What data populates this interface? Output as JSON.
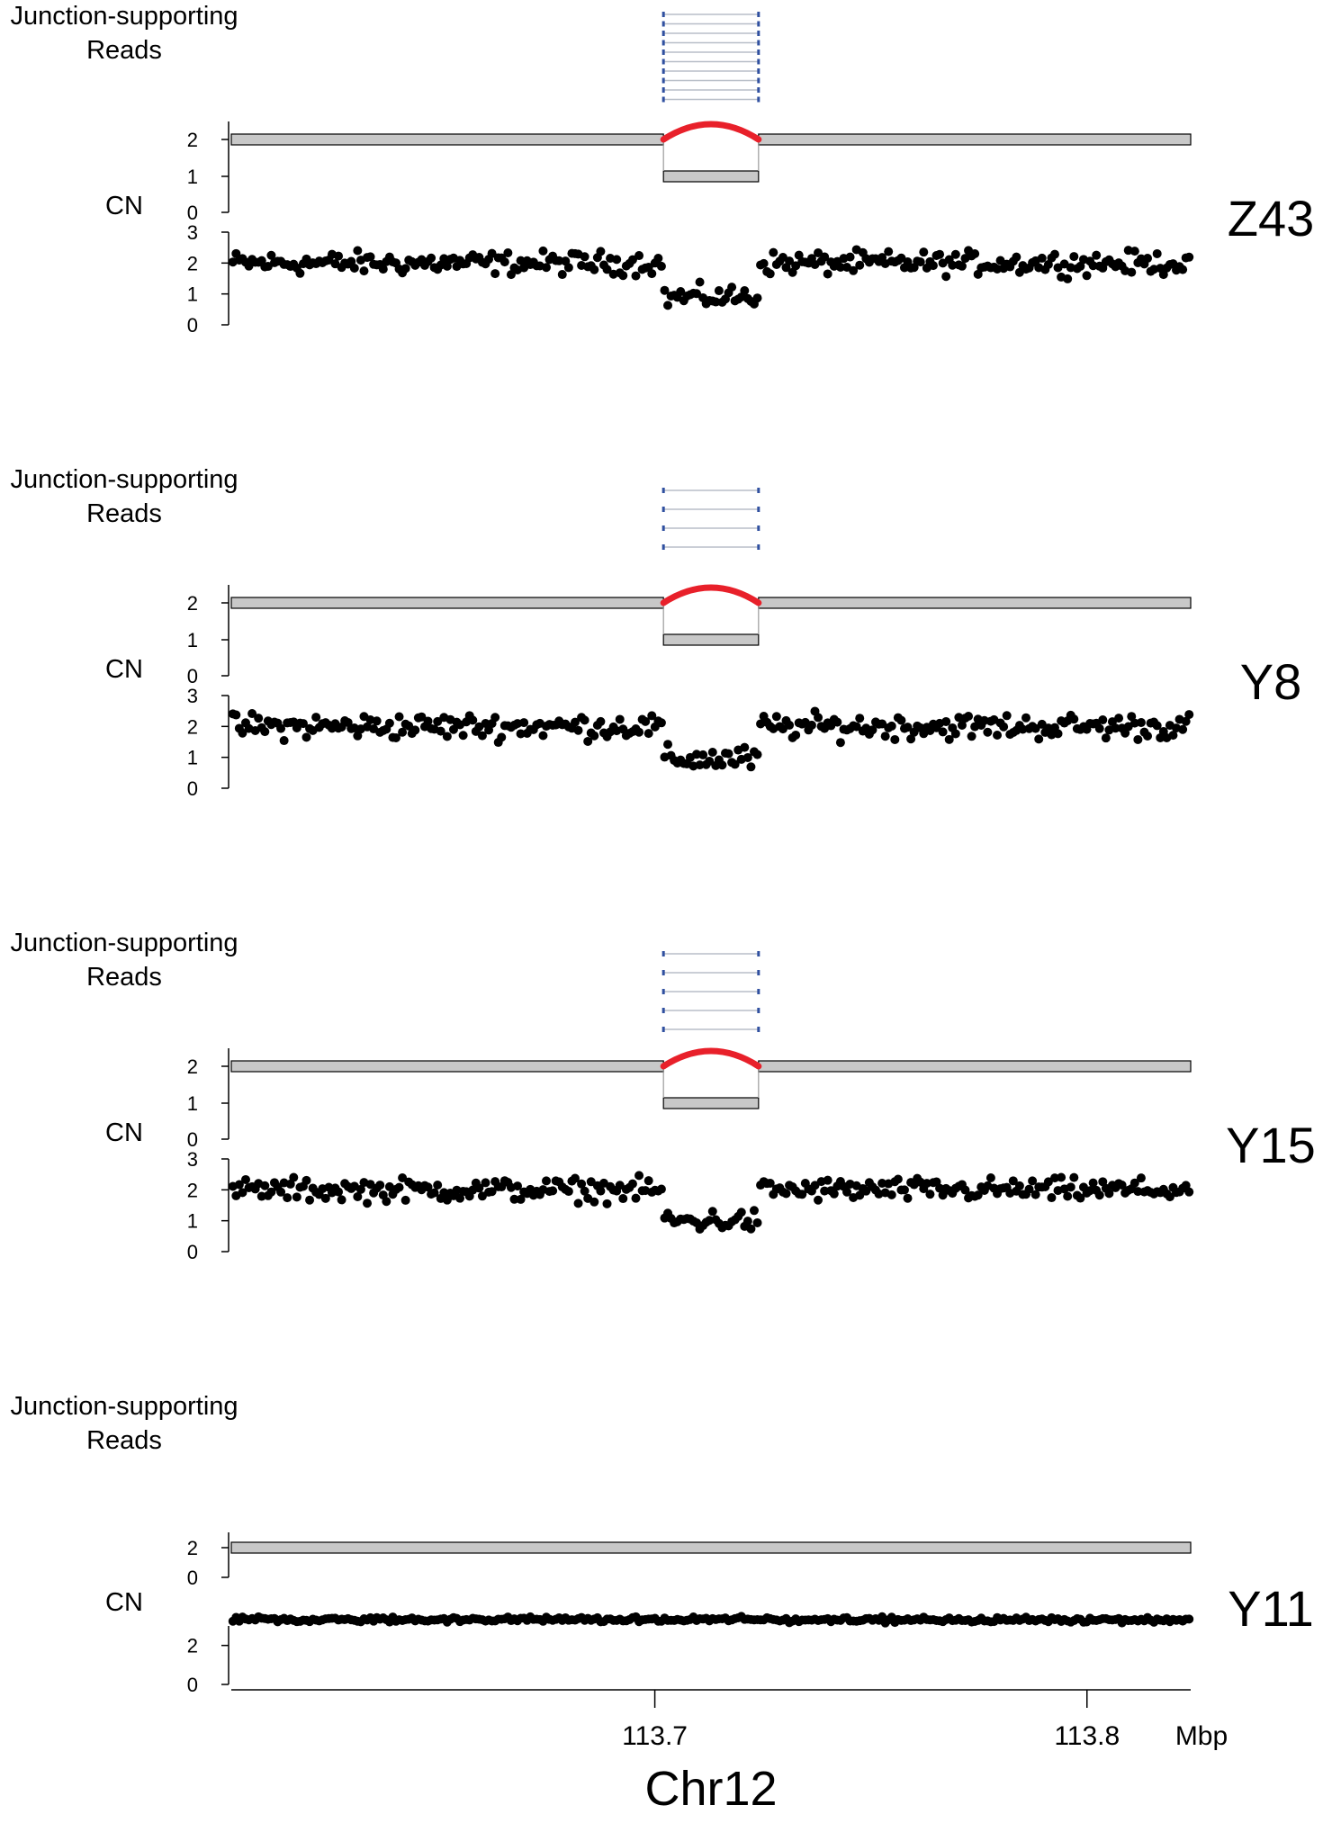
{
  "chart_data": [
    {
      "type": "scatter",
      "sample": "Z43",
      "reads_label_line1": "Junction-supporting",
      "reads_label_line2": "Reads",
      "cn_label": "CN",
      "segment_ticks": [
        "2",
        "1",
        "0"
      ],
      "points_ticks": [
        "3",
        "2",
        "1",
        "0"
      ],
      "junction_reads": 10,
      "segments": [
        {
          "start": 113.602,
          "end": 113.702,
          "cn": 2
        },
        {
          "start": 113.702,
          "end": 113.724,
          "cn": 1
        },
        {
          "start": 113.724,
          "end": 113.824,
          "cn": 2
        }
      ],
      "deletion": {
        "start": 113.702,
        "end": 113.724
      },
      "ylim": [
        0,
        3
      ],
      "point_profile": {
        "baseline": 2.0,
        "deletion_level": 0.9,
        "noise": 0.18,
        "n": 300
      }
    },
    {
      "type": "scatter",
      "sample": "Y8",
      "reads_label_line1": "Junction-supporting",
      "reads_label_line2": "Reads",
      "cn_label": "CN",
      "segment_ticks": [
        "2",
        "1",
        "0"
      ],
      "points_ticks": [
        "3",
        "2",
        "1",
        "0"
      ],
      "junction_reads": 4,
      "segments": [
        {
          "start": 113.602,
          "end": 113.702,
          "cn": 2
        },
        {
          "start": 113.702,
          "end": 113.724,
          "cn": 1
        },
        {
          "start": 113.724,
          "end": 113.824,
          "cn": 2
        }
      ],
      "deletion": {
        "start": 113.702,
        "end": 113.724
      },
      "ylim": [
        0,
        3
      ],
      "point_profile": {
        "baseline": 2.0,
        "deletion_level": 0.95,
        "noise": 0.2,
        "n": 300
      }
    },
    {
      "type": "scatter",
      "sample": "Y15",
      "reads_label_line1": "Junction-supporting",
      "reads_label_line2": "Reads",
      "cn_label": "CN",
      "segment_ticks": [
        "2",
        "1",
        "0"
      ],
      "points_ticks": [
        "3",
        "2",
        "1",
        "0"
      ],
      "junction_reads": 5,
      "segments": [
        {
          "start": 113.602,
          "end": 113.702,
          "cn": 2
        },
        {
          "start": 113.702,
          "end": 113.724,
          "cn": 1
        },
        {
          "start": 113.724,
          "end": 113.824,
          "cn": 2
        }
      ],
      "deletion": {
        "start": 113.702,
        "end": 113.724
      },
      "ylim": [
        0,
        3
      ],
      "point_profile": {
        "baseline": 2.0,
        "deletion_level": 1.0,
        "noise": 0.18,
        "n": 300
      }
    },
    {
      "type": "scatter",
      "sample": "Y11",
      "reads_label_line1": "Junction-supporting",
      "reads_label_line2": "Reads",
      "cn_label": "CN",
      "segment_ticks": [
        "2",
        "0"
      ],
      "points_ticks": [
        "2",
        "0"
      ],
      "junction_reads": 0,
      "segments": [
        {
          "start": 113.602,
          "end": 113.824,
          "cn": 2
        }
      ],
      "deletion": null,
      "ylim": [
        0,
        3
      ],
      "point_profile": {
        "baseline": 2.0,
        "deletion_level": 2.0,
        "noise": 0.12,
        "n": 300
      }
    }
  ],
  "x_axis": {
    "range": [
      113.602,
      113.824
    ],
    "ticks": [
      {
        "value": 113.7,
        "label": "113.7"
      },
      {
        "value": 113.8,
        "label": "113.8"
      }
    ],
    "unit": "Mbp",
    "chromosome": "Chr12"
  },
  "colors": {
    "deletion_arc": "#e8202a",
    "segment_fill": "#c8c8c8",
    "read_line": "#b8bec8",
    "read_end": "#3050a0",
    "points": "#000000"
  }
}
